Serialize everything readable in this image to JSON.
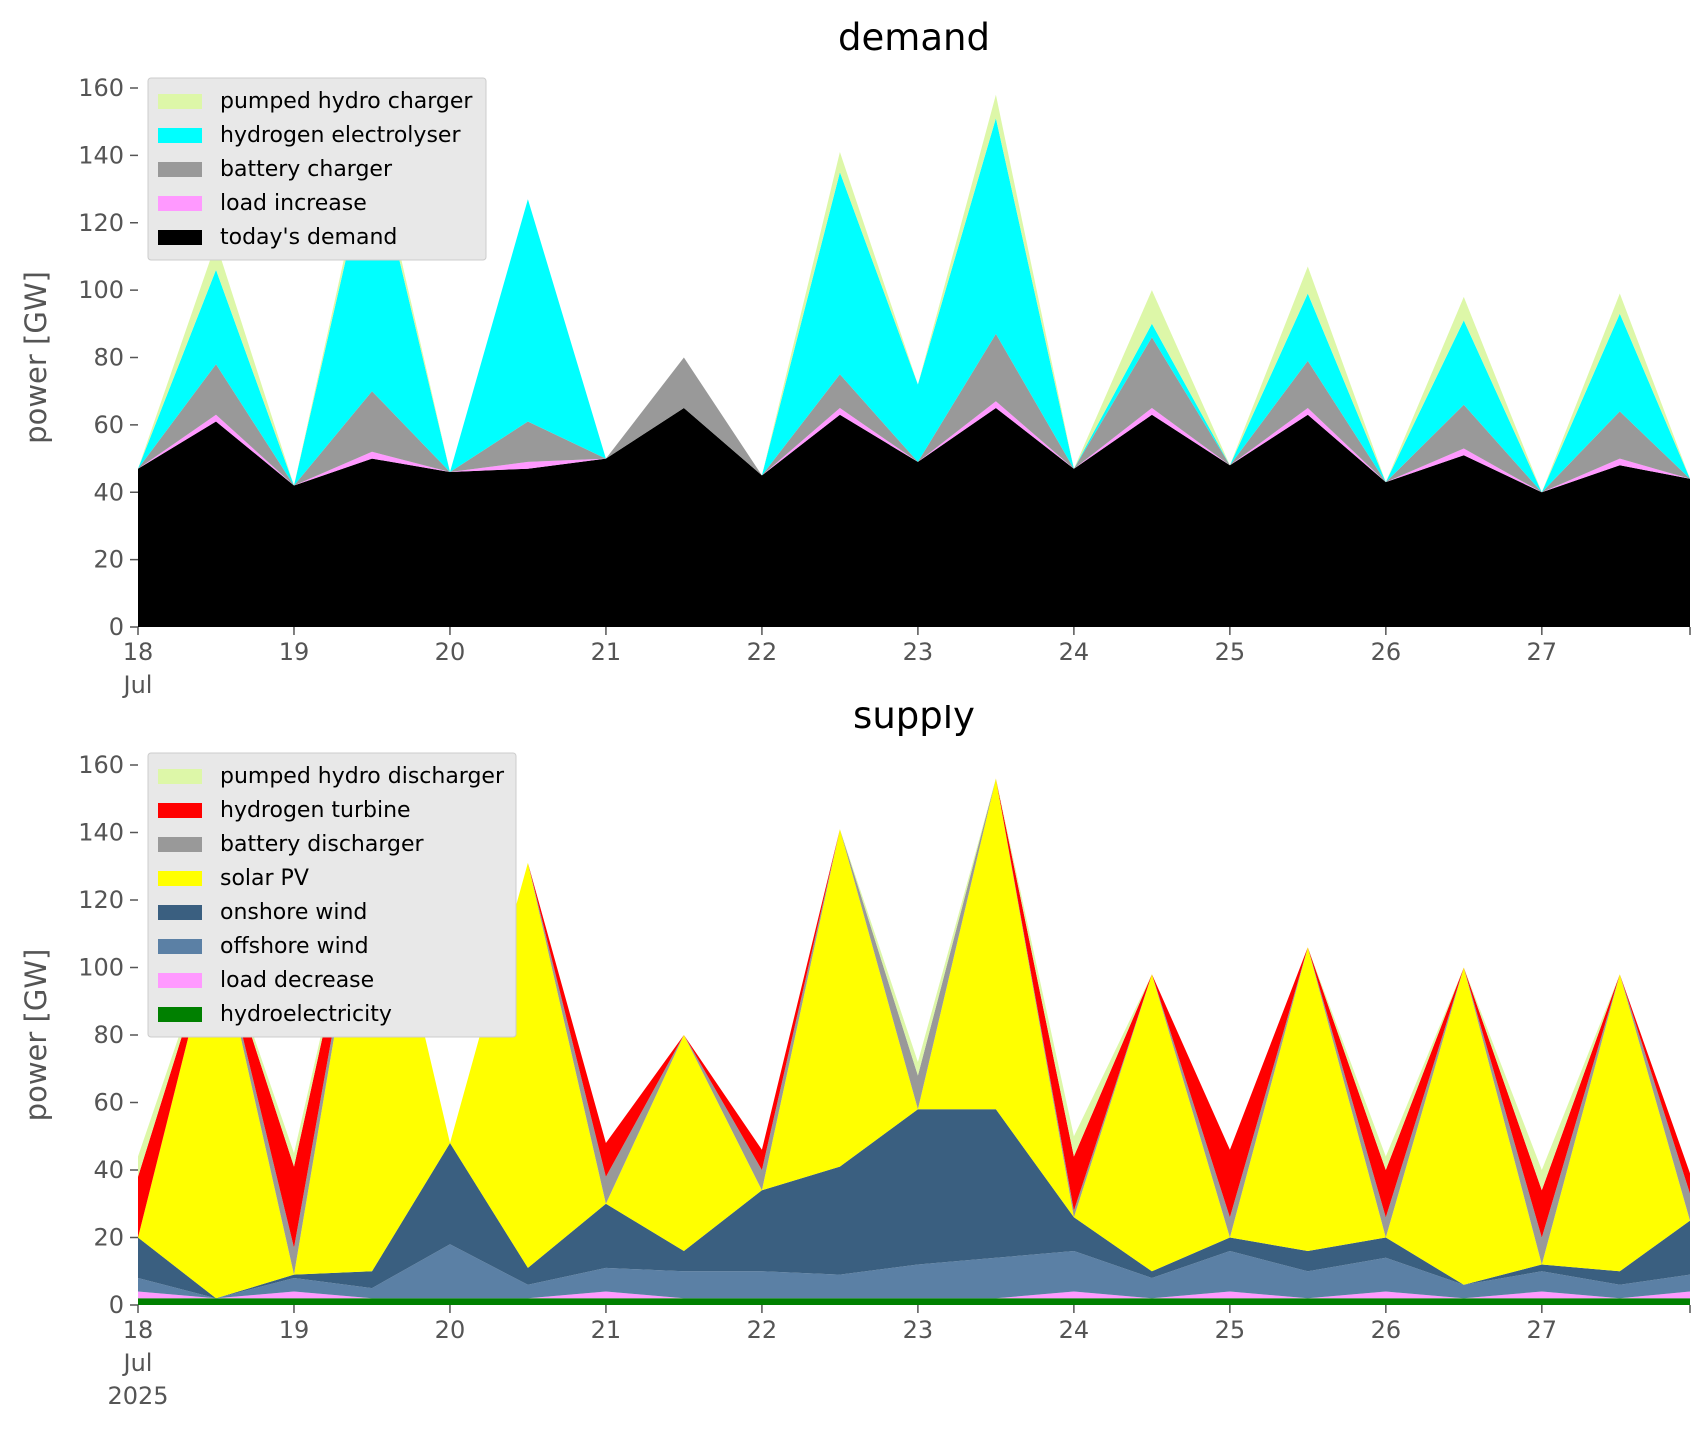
{
  "chart_data": [
    {
      "type": "area",
      "stacked": true,
      "title": "demand",
      "ylabel": "power [GW]",
      "xlabel": "",
      "ylim": [
        0,
        165
      ],
      "yticks": [
        0,
        20,
        40,
        60,
        80,
        100,
        120,
        140,
        160
      ],
      "x_start_label": [
        "18",
        "Jul",
        "2025"
      ],
      "x_ticks": [
        "19",
        "20",
        "21",
        "22",
        "23",
        "24",
        "25",
        "26",
        "27"
      ],
      "x_unit": "day of July 2025",
      "x": [
        18,
        18.5,
        19,
        19.5,
        20,
        20.5,
        21,
        21.5,
        22,
        22.5,
        23,
        23.5,
        24,
        24.5,
        25,
        25.5,
        26,
        26.5,
        27,
        27.5,
        27.95
      ],
      "grid": false,
      "legend_position": "top-left",
      "series": [
        {
          "name": "today's demand",
          "color": "#000000",
          "values": [
            47,
            61,
            42,
            50,
            46,
            47,
            50,
            65,
            45,
            63,
            49,
            65,
            47,
            63,
            48,
            63,
            43,
            51,
            40,
            48,
            44
          ]
        },
        {
          "name": "load increase",
          "color": "#ff99ff",
          "values": [
            0,
            2,
            0,
            2,
            0,
            2,
            0,
            0,
            0,
            2,
            0,
            2,
            0,
            2,
            0,
            2,
            0,
            2,
            0,
            2,
            0
          ]
        },
        {
          "name": "battery charger",
          "color": "#999999",
          "values": [
            0,
            15,
            0,
            18,
            0,
            12,
            0,
            15,
            0,
            10,
            0,
            20,
            0,
            21,
            0,
            14,
            0,
            13,
            0,
            14,
            0
          ]
        },
        {
          "name": "hydrogen electrolyser",
          "color": "#00ffff",
          "values": [
            0,
            28,
            0,
            73,
            0,
            66,
            0,
            0,
            0,
            60,
            23,
            64,
            0,
            4,
            0,
            20,
            0,
            25,
            0,
            29,
            0
          ]
        },
        {
          "name": "pumped hydro charger",
          "color": "#ddf7a8",
          "values": [
            0,
            8,
            0,
            4,
            0,
            0,
            0,
            0,
            0,
            6,
            0,
            7,
            0,
            10,
            0,
            8,
            0,
            7,
            0,
            6,
            0
          ]
        }
      ]
    },
    {
      "type": "area",
      "stacked": true,
      "title": "supply",
      "ylabel": "power [GW]",
      "xlabel": "",
      "ylim": [
        0,
        165
      ],
      "yticks": [
        0,
        20,
        40,
        60,
        80,
        100,
        120,
        140,
        160
      ],
      "x_start_label": [
        "18",
        "Jul",
        "2025"
      ],
      "x_ticks": [
        "19",
        "20",
        "21",
        "22",
        "23",
        "24",
        "25",
        "26",
        "27"
      ],
      "x_unit": "day of July 2025",
      "x": [
        18,
        18.5,
        19,
        19.5,
        20,
        20.5,
        21,
        21.5,
        22,
        22.5,
        23,
        23.5,
        24,
        24.5,
        25,
        25.5,
        26,
        26.5,
        27,
        27.5,
        27.95
      ],
      "grid": false,
      "legend_position": "top-left",
      "series": [
        {
          "name": "hydroelectricity",
          "color": "#008000",
          "values": [
            2,
            2,
            2,
            2,
            2,
            2,
            2,
            2,
            2,
            2,
            2,
            2,
            2,
            2,
            2,
            2,
            2,
            2,
            2,
            2,
            2
          ]
        },
        {
          "name": "load decrease",
          "color": "#ff99ff",
          "values": [
            2,
            0,
            2,
            0,
            0,
            0,
            2,
            0,
            0,
            0,
            0,
            0,
            2,
            0,
            2,
            0,
            2,
            0,
            2,
            0,
            2
          ]
        },
        {
          "name": "offshore wind",
          "color": "#5b80a5",
          "values": [
            4,
            0,
            4,
            3,
            16,
            4,
            7,
            8,
            8,
            7,
            10,
            12,
            12,
            6,
            12,
            8,
            10,
            4,
            6,
            4,
            5
          ]
        },
        {
          "name": "onshore wind",
          "color": "#3a5f80",
          "values": [
            12,
            0,
            1,
            5,
            30,
            5,
            19,
            6,
            24,
            32,
            46,
            44,
            10,
            2,
            4,
            6,
            6,
            0,
            2,
            4,
            16
          ]
        },
        {
          "name": "solar PV",
          "color": "#ffff00",
          "values": [
            0,
            110,
            0,
            136,
            0,
            120,
            0,
            64,
            0,
            100,
            0,
            98,
            0,
            88,
            0,
            90,
            0,
            94,
            0,
            88,
            0
          ]
        },
        {
          "name": "battery discharger",
          "color": "#999999",
          "values": [
            0,
            0,
            8,
            0,
            0,
            0,
            8,
            0,
            6,
            0,
            10,
            0,
            2,
            0,
            6,
            0,
            6,
            0,
            8,
            0,
            8
          ]
        },
        {
          "name": "hydrogen turbine",
          "color": "#ff0000",
          "values": [
            18,
            0,
            24,
            0,
            0,
            0,
            10,
            0,
            6,
            0,
            0,
            0,
            16,
            0,
            20,
            0,
            14,
            0,
            14,
            0,
            6
          ]
        },
        {
          "name": "pumped hydro discharger",
          "color": "#ddf7a8",
          "values": [
            6,
            0,
            4,
            0,
            0,
            0,
            0,
            0,
            0,
            0,
            4,
            0,
            6,
            0,
            0,
            0,
            4,
            0,
            6,
            0,
            0
          ]
        }
      ]
    }
  ]
}
